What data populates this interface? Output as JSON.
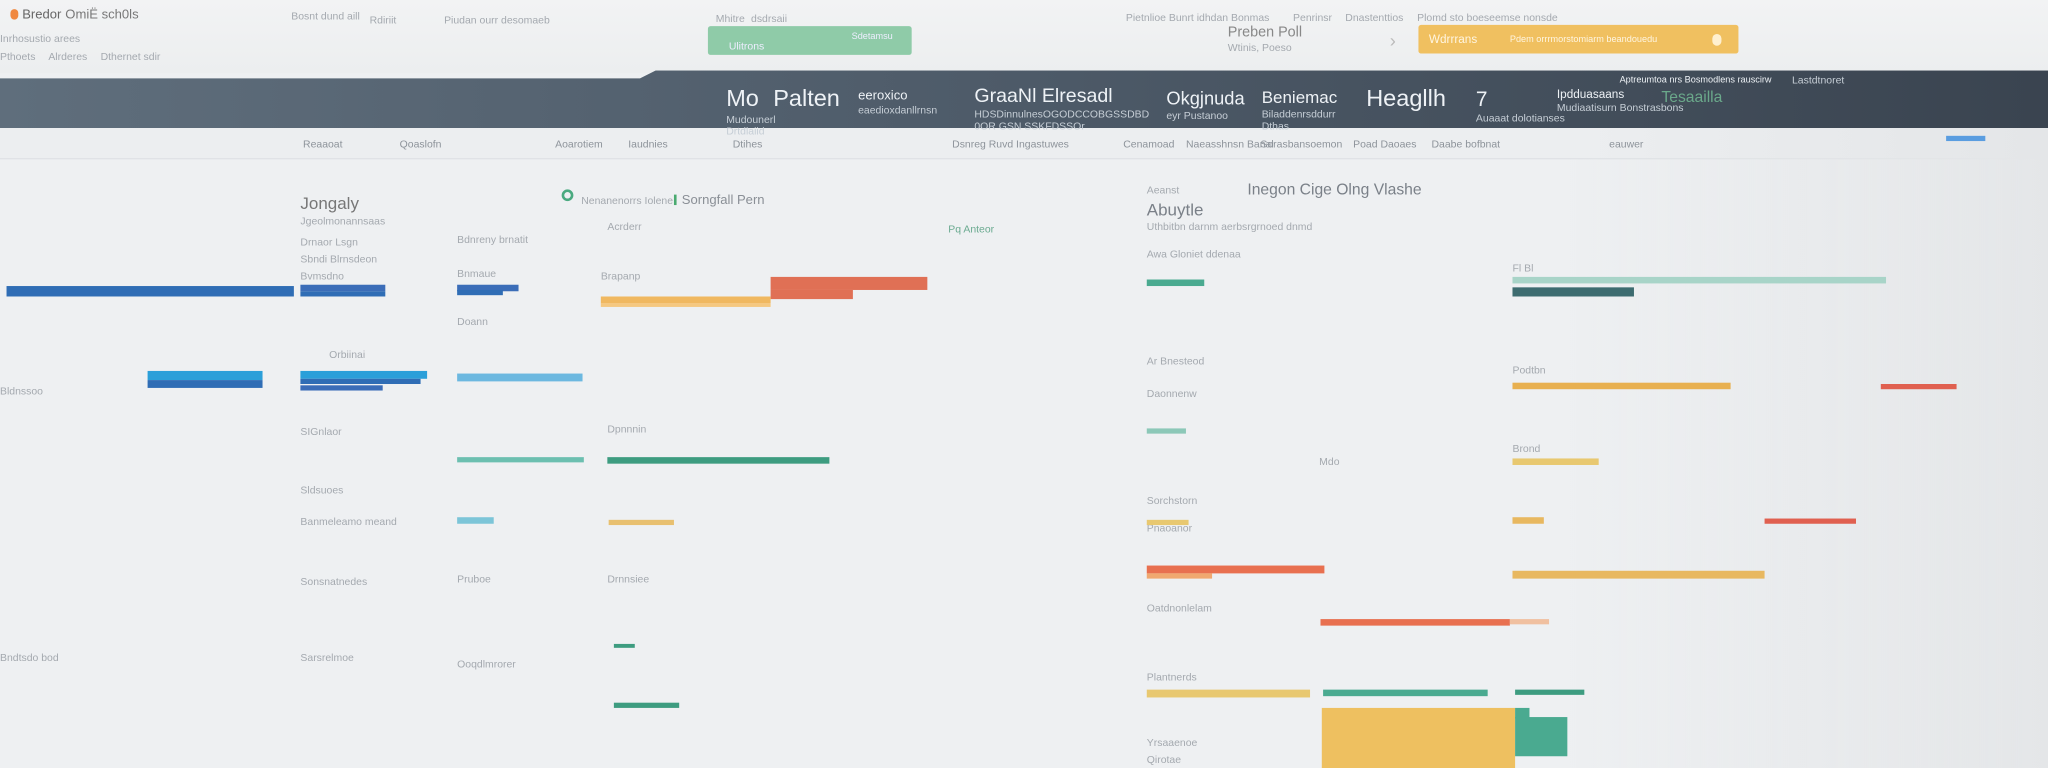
{
  "topbar": {
    "logo_text": "Bredor",
    "app_title": "OmiЁ sch0ls",
    "subtitle": "Inrhosustio arees",
    "tabs": [
      "Pthoets",
      "Alrderes",
      "Dthernet sdir"
    ],
    "nav_links": [
      "Bosnt dund aill",
      "Rdiriit",
      "Piudan ourr desomaeb"
    ],
    "nav_links_right": [
      "Pietnlioe Bunrt idhdan Bonmas",
      "Penrinsr",
      "Dnastenttios",
      "Plomd sto boeseemse nonsde"
    ],
    "search_label": "Mhitre",
    "search_value": "dsdrsaii",
    "green_button": {
      "left": "Ulitrons",
      "right": "Sdetamsu"
    },
    "profile_name": "Preben Poll",
    "profile_sub": "Wtinis, Poeso",
    "orange_button": {
      "label": "Wdrrrans",
      "text": "Pdem orrrmorstomiarm beandouedu"
    }
  },
  "stats_band": [
    {
      "title": "Mo",
      "sub": "Mudounerl",
      "extra": "Drtdlaiid"
    },
    {
      "title": "Palten",
      "sub": ""
    },
    {
      "title": "eeroxico",
      "sub": "eaedioxdanllrnsn"
    },
    {
      "title": "GraaNl Elresadl",
      "sub": "HDSDinnulnesOGODCCOBGSSDBD",
      "extra": "0OR GSN SSKFDSSOr"
    },
    {
      "title": "Okgjnuda",
      "sub": "eyr Pustanoo"
    },
    {
      "title": "Beniemac",
      "sub": "Biladdenrsddurr",
      "extra": "Dthas"
    },
    {
      "title": "Heagllh",
      "sub": ""
    },
    {
      "title": "7",
      "sub": "Auaaat dolotianses"
    },
    {
      "title": "Ipdduasaans",
      "sub": "Mudiaatisurn Bonstrasbons"
    },
    {
      "title": "Tesaailla",
      "sub": ""
    },
    {
      "title": "Aptreumtoa nrs Bosmodlens rauscirw",
      "sub": "Lastdtnoret"
    }
  ],
  "subnav": [
    "Reaaoat",
    "Qoaslofn",
    "Aoarotiem",
    "Iaudnies",
    "Dtihes",
    "Dsnreg Ruvd Ingastuwes",
    "Cenamoad",
    "Naeasshnsn Banal",
    "Sorasbansoemon",
    "Poad Daoaes",
    "Daabe bofbnat",
    "eauwer"
  ],
  "left_panel": {
    "title": "Jongaly",
    "subtitle": "Jgeolmonannsaas",
    "labels": [
      "Drnaor Lsgn",
      "Sbndi Blrnsdeon",
      "Bvmsdno",
      "Orbiinai",
      "SIGnlaor",
      "Sldsuoes",
      "Banmeleamo meand",
      "Sonsnatnedes"
    ],
    "side_labels": [
      "Bldnssoo",
      "Bndtsdo bod",
      "Sarsrelmoe"
    ]
  },
  "mid_panel": {
    "status_label": "Sorngfall Pern",
    "status_sub": "Nenanenorrs Iolene",
    "header": "Acrderr",
    "column_label": "Bdnreny brnatit",
    "labels": [
      "Bnmaue",
      "Doann",
      "Brapanp",
      "Dpnnnin",
      "Pruboe",
      "Drnnsiee",
      "Ooqdlmrorer"
    ],
    "side_link": "Pq Anteor"
  },
  "right_panel": {
    "heading": "Inegon Cige Olng Vlashe",
    "kicker": "Aeanst",
    "title": "Abuytle",
    "description": "Uthbitbn darnm aerbsrgrnoed dnmd",
    "labels": [
      "Awa Gloniet ddenaa",
      "Ar Bnesteod",
      "Daonnenw",
      "Sorchstorn",
      "Pnaoanor",
      "Oatdnonlelam",
      "Plantnerds",
      "Yrsaaenoe",
      "Qirotae"
    ],
    "chart_labels": [
      "Fl Bl",
      "Podtbn",
      "Brond",
      "Mdo"
    ]
  },
  "colors": {
    "blue": "#2f6db5",
    "sky": "#2b9fd9",
    "teal": "#3d9c80",
    "orange": "#e8b050",
    "red": "#e07055",
    "green_button": "#8fcba8",
    "amber_button": "#f0c060",
    "band": "#4d5a68"
  }
}
